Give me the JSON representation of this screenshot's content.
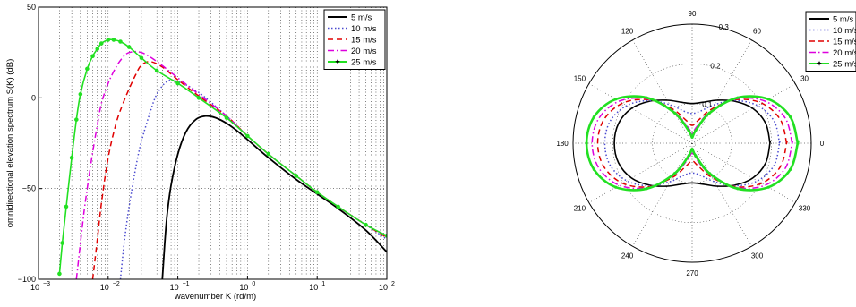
{
  "chart_data": [
    {
      "type": "line",
      "xscale": "log",
      "xlabel": "wavenumber K (rd/m)",
      "ylabel": "omnidirectional elevation spectrum S(K) (dB)",
      "xlim": [
        0.001,
        100
      ],
      "ylim": [
        -100,
        50
      ],
      "x_ticks": [
        {
          "base": "10",
          "exp": "−3"
        },
        {
          "base": "10",
          "exp": "−2"
        },
        {
          "base": "10",
          "exp": "−1"
        },
        {
          "base": "10",
          "exp": "0"
        },
        {
          "base": "10",
          "exp": "1"
        },
        {
          "base": "10",
          "exp": "2"
        }
      ],
      "y_ticks": [
        "50",
        "0",
        "−50",
        "−100"
      ],
      "grid": true,
      "legend_position": "top-right",
      "series": [
        {
          "name": "5 m/s",
          "color": "#000000",
          "style": "solid",
          "x": [
            0.06,
            0.065,
            0.07,
            0.08,
            0.1,
            0.13,
            0.18,
            0.25,
            0.35,
            0.5,
            0.7,
            1,
            2,
            5,
            10,
            20,
            50,
            100
          ],
          "y": [
            -100,
            -80,
            -65,
            -48,
            -31,
            -19,
            -12,
            -10,
            -11,
            -14,
            -18,
            -23,
            -33,
            -45,
            -53,
            -61,
            -73,
            -85
          ]
        },
        {
          "name": "10 m/s",
          "color": "#4b4bcf",
          "style": "dotted",
          "x": [
            0.015,
            0.017,
            0.02,
            0.025,
            0.03,
            0.04,
            0.05,
            0.07,
            0.1,
            0.2,
            0.5,
            1,
            2,
            5,
            10,
            20,
            50,
            100
          ],
          "y": [
            -100,
            -80,
            -60,
            -38,
            -24,
            -8,
            2,
            9,
            9,
            3,
            -10,
            -21,
            -31,
            -43,
            -52,
            -60,
            -70,
            -78
          ]
        },
        {
          "name": "15 m/s",
          "color": "#e00000",
          "style": "dashed",
          "x": [
            0.006,
            0.007,
            0.008,
            0.01,
            0.013,
            0.016,
            0.02,
            0.025,
            0.03,
            0.04,
            0.06,
            0.1,
            0.2,
            0.5,
            1,
            2,
            5,
            10,
            20,
            50,
            100
          ],
          "y": [
            -100,
            -78,
            -58,
            -33,
            -14,
            -4,
            5,
            13,
            18,
            20,
            17,
            10,
            1,
            -10,
            -21,
            -31,
            -43,
            -52,
            -60,
            -70,
            -77
          ]
        },
        {
          "name": "20 m/s",
          "color": "#dd00dd",
          "style": "dashdot",
          "x": [
            0.0035,
            0.004,
            0.0045,
            0.005,
            0.006,
            0.007,
            0.008,
            0.01,
            0.013,
            0.016,
            0.02,
            0.03,
            0.05,
            0.1,
            0.2,
            0.5,
            1,
            2,
            5,
            10,
            20,
            50,
            100
          ],
          "y": [
            -100,
            -80,
            -63,
            -50,
            -30,
            -15,
            -3,
            8,
            17,
            22,
            25,
            25,
            20,
            11,
            2,
            -10,
            -21,
            -31,
            -43,
            -52,
            -60,
            -70,
            -76
          ]
        },
        {
          "name": "25 m/s",
          "color": "#22e022",
          "style": "solid-marker",
          "x": [
            0.002,
            0.0022,
            0.0025,
            0.003,
            0.0035,
            0.004,
            0.005,
            0.006,
            0.007,
            0.008,
            0.01,
            0.012,
            0.015,
            0.02,
            0.03,
            0.05,
            0.1,
            0.2,
            0.5,
            1,
            2,
            5,
            10,
            20,
            50,
            100
          ],
          "y": [
            -97,
            -80,
            -60,
            -33,
            -12,
            2,
            16,
            23,
            27,
            30,
            32,
            32,
            31,
            28,
            22,
            15,
            8,
            0,
            -11,
            -21,
            -31,
            -43,
            -52,
            -60,
            -70,
            -76
          ]
        }
      ]
    },
    {
      "type": "line",
      "projection": "polar",
      "rlim": [
        0,
        0.3
      ],
      "r_ticks": [
        "0.1",
        "0.2",
        "0.3"
      ],
      "angle_ticks": [
        "0",
        "30",
        "60",
        "90",
        "120",
        "150",
        "180",
        "210",
        "240",
        "270",
        "300",
        "330"
      ],
      "grid": true,
      "legend_position": "top-right",
      "series": [
        {
          "name": "5 m/s",
          "color": "#000000",
          "style": "solid",
          "theta": [
            0,
            15,
            30,
            45,
            60,
            75,
            90
          ],
          "r": [
            0.196,
            0.192,
            0.176,
            0.15,
            0.125,
            0.107,
            0.1
          ]
        },
        {
          "name": "10 m/s",
          "color": "#4b4bcf",
          "style": "dotted",
          "theta": [
            0,
            15,
            30,
            45,
            60,
            75,
            90
          ],
          "r": [
            0.22,
            0.214,
            0.19,
            0.152,
            0.112,
            0.084,
            0.075
          ]
        },
        {
          "name": "15 m/s",
          "color": "#e00000",
          "style": "dashed",
          "theta": [
            0,
            15,
            30,
            45,
            60,
            75,
            90
          ],
          "r": [
            0.238,
            0.23,
            0.202,
            0.155,
            0.1,
            0.06,
            0.045
          ]
        },
        {
          "name": "20 m/s",
          "color": "#dd00dd",
          "style": "dashdot",
          "theta": [
            0,
            15,
            30,
            45,
            60,
            75,
            90
          ],
          "r": [
            0.252,
            0.243,
            0.212,
            0.158,
            0.092,
            0.042,
            0.025
          ]
        },
        {
          "name": "25 m/s",
          "color": "#22e022",
          "style": "solid-marker",
          "theta": [
            0,
            15,
            30,
            45,
            60,
            75,
            90
          ],
          "r": [
            0.266,
            0.256,
            0.222,
            0.162,
            0.088,
            0.032,
            0.015
          ]
        }
      ]
    }
  ]
}
